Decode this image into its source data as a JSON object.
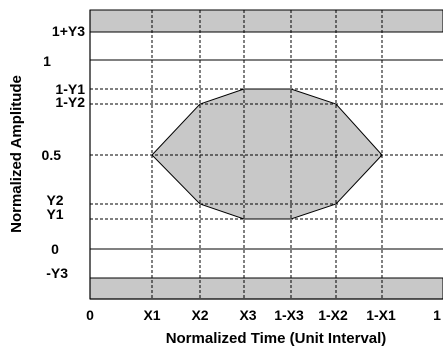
{
  "diagram": {
    "xlabel": "Normalized Time (Unit Interval)",
    "ylabel": "Normalized Amplitude",
    "y_ticks": [
      {
        "label": "1+Y3"
      },
      {
        "label": "1"
      },
      {
        "label": "1-Y1"
      },
      {
        "label": "1-Y2"
      },
      {
        "label": "0.5"
      },
      {
        "label": "Y2"
      },
      {
        "label": "Y1"
      },
      {
        "label": "0"
      },
      {
        "label": "-Y3"
      }
    ],
    "x_ticks": [
      {
        "label": "0"
      },
      {
        "label": "X1"
      },
      {
        "label": "X2"
      },
      {
        "label": "X3"
      },
      {
        "label": "1-X3"
      },
      {
        "label": "1-X2"
      },
      {
        "label": "1-X1"
      },
      {
        "label": "1"
      }
    ],
    "colors": {
      "mask_fill": "#c8c8c8",
      "grid": "#000000",
      "axis": "#000000"
    }
  }
}
